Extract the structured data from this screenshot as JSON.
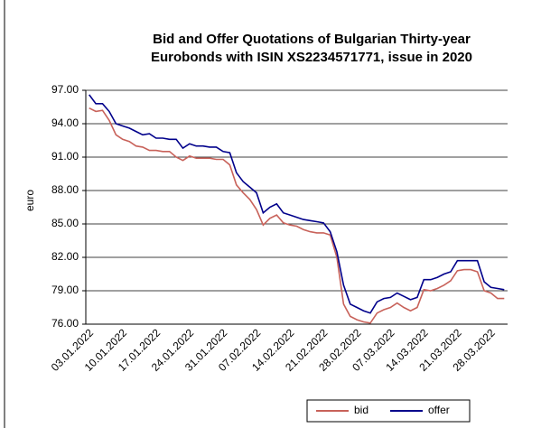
{
  "chart_data": {
    "type": "line",
    "title": [
      "Bid and Offer Quotations of Bulgarian Thirty-year",
      "Eurobonds with ISIN  XS2234571771, issue in 2020"
    ],
    "y_label": "euro",
    "categories": [
      "03.01.2022",
      null,
      null,
      null,
      null,
      "10.01.2022",
      null,
      null,
      null,
      null,
      "17.01.2022",
      null,
      null,
      null,
      null,
      "24.01.2022",
      null,
      null,
      null,
      null,
      "31.01.2022",
      null,
      null,
      null,
      null,
      "07.02.2022",
      null,
      null,
      null,
      null,
      "14.02.2022",
      null,
      null,
      null,
      null,
      "21.02.2022",
      null,
      null,
      null,
      null,
      "28.02.2022",
      null,
      null,
      null,
      null,
      "07.03.2022",
      null,
      null,
      null,
      null,
      "14.03.2022",
      null,
      null,
      null,
      null,
      "21.03.2022",
      null,
      null,
      null,
      null,
      "28.03.2022",
      null,
      null
    ],
    "series": [
      {
        "name": "bid",
        "color": "#c8625a",
        "values": [
          95.4,
          95.1,
          95.2,
          94.3,
          93.0,
          92.6,
          92.4,
          92.0,
          91.9,
          91.6,
          91.6,
          91.5,
          91.5,
          91.0,
          90.7,
          91.1,
          90.9,
          90.9,
          90.9,
          90.8,
          90.8,
          90.3,
          88.5,
          87.8,
          87.2,
          86.3,
          84.9,
          85.5,
          85.8,
          85.1,
          84.9,
          84.8,
          84.5,
          84.3,
          84.2,
          84.2,
          84.0,
          82.0,
          77.8,
          76.7,
          76.4,
          76.2,
          76.1,
          77.0,
          77.3,
          77.5,
          77.9,
          77.5,
          77.2,
          77.5,
          79.1,
          79.0,
          79.2,
          79.5,
          79.9,
          80.8,
          80.9,
          80.9,
          80.7,
          79.0,
          78.8,
          78.3,
          78.3
        ]
      },
      {
        "name": "offer",
        "color": "#00008b",
        "values": [
          96.6,
          95.8,
          95.8,
          95.1,
          94.0,
          93.8,
          93.6,
          93.3,
          93.0,
          93.1,
          92.7,
          92.7,
          92.6,
          92.6,
          91.8,
          92.2,
          92.0,
          92.0,
          91.9,
          91.9,
          91.5,
          91.4,
          89.6,
          88.8,
          88.3,
          87.8,
          86.0,
          86.5,
          86.8,
          86.0,
          85.8,
          85.6,
          85.4,
          85.3,
          85.2,
          85.1,
          84.3,
          82.5,
          79.5,
          77.8,
          77.5,
          77.2,
          77.0,
          78.0,
          78.3,
          78.4,
          78.8,
          78.5,
          78.2,
          78.4,
          80.0,
          80.0,
          80.2,
          80.5,
          80.7,
          81.7,
          81.7,
          81.7,
          81.7,
          79.8,
          79.3,
          79.2,
          79.1
        ]
      }
    ],
    "ylim": [
      76,
      97
    ],
    "yticks": [
      {
        "value": 76,
        "label": "76.00"
      },
      {
        "value": 79,
        "label": "79.00"
      },
      {
        "value": 82,
        "label": "82.00"
      },
      {
        "value": 85,
        "label": "85.00"
      },
      {
        "value": 88,
        "label": "88.00"
      },
      {
        "value": 91,
        "label": "91.00"
      },
      {
        "value": 94,
        "label": "94.00"
      },
      {
        "value": 97,
        "label": "97.00"
      }
    ],
    "grid": true,
    "legend": "bottom"
  }
}
